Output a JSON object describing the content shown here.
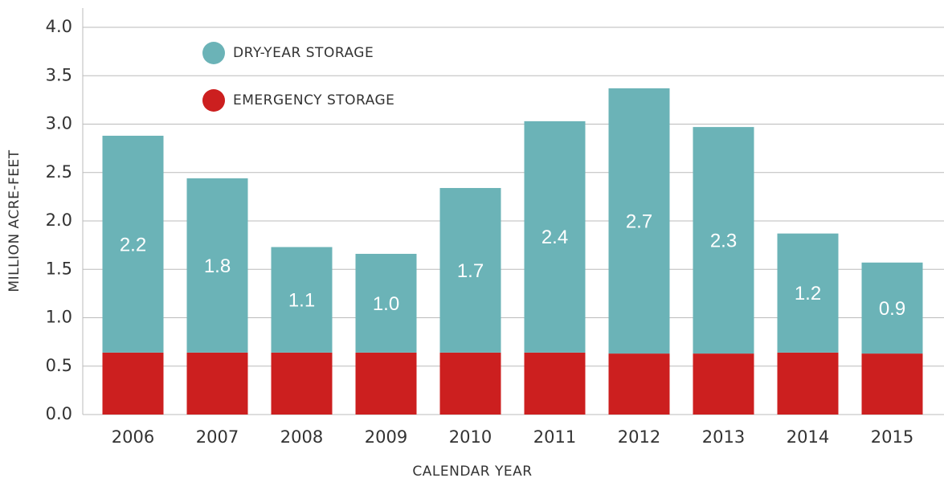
{
  "chart_data": {
    "type": "stacked_bar",
    "x_label": "CALENDAR YEAR",
    "y_label": "MILLION ACRE-FEET",
    "categories": [
      "2006",
      "2007",
      "2008",
      "2009",
      "2010",
      "2011",
      "2012",
      "2013",
      "2014",
      "2015"
    ],
    "series": [
      {
        "name": "EMERGENCY STORAGE",
        "color": "#cc1f1f",
        "values": [
          0.64,
          0.64,
          0.64,
          0.64,
          0.64,
          0.64,
          0.63,
          0.63,
          0.64,
          0.63
        ]
      },
      {
        "name": "DRY-YEAR STORAGE",
        "color": "#6bb3b7",
        "values": [
          2.24,
          1.8,
          1.09,
          1.02,
          1.7,
          2.39,
          2.74,
          2.34,
          1.23,
          0.94
        ],
        "value_labels": [
          "2.2",
          "1.8",
          "1.1",
          "1.0",
          "1.7",
          "2.4",
          "2.7",
          "2.3",
          "1.2",
          "0.9"
        ]
      }
    ],
    "ylim": [
      0,
      4
    ],
    "yticks": [
      {
        "value": 0,
        "label": "0.0"
      },
      0.5,
      {
        "value": 1,
        "label": "1.0"
      },
      1.5,
      {
        "value": 2,
        "label": "2.0"
      },
      2.5,
      {
        "value": 3,
        "label": "3.0"
      },
      3.5,
      {
        "value": 4,
        "label": "4.0"
      }
    ],
    "grid": true
  }
}
